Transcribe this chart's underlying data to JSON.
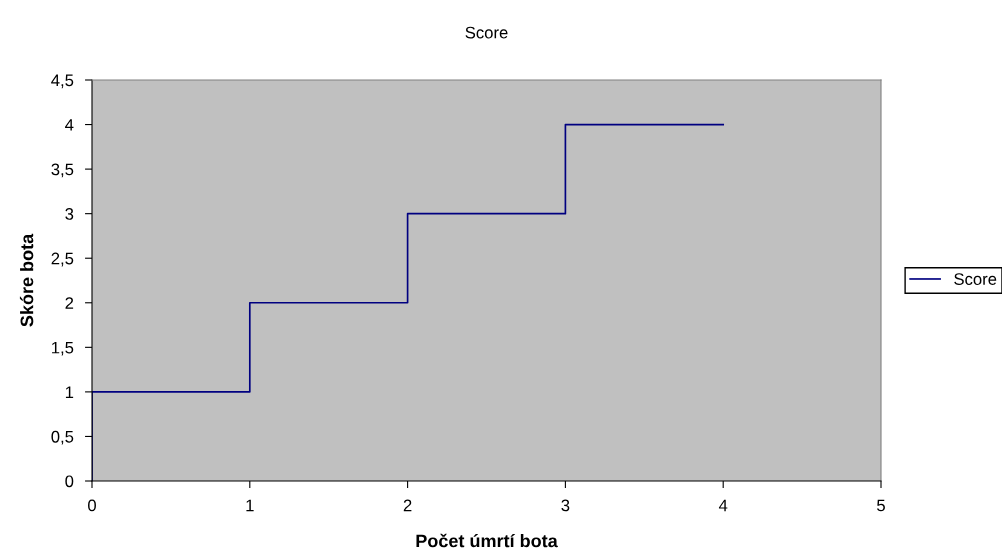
{
  "chart_data": {
    "type": "step",
    "title": "Score",
    "xlabel": "Počet úmrtí bota",
    "ylabel": "Skóre bota",
    "x": [
      0,
      0,
      1,
      2,
      3,
      4
    ],
    "series": [
      {
        "name": "Score",
        "color": "#000080",
        "values": [
          0,
          1,
          2,
          3,
          4,
          4
        ]
      }
    ],
    "xlim": [
      0,
      5
    ],
    "xticks": [
      0,
      1,
      2,
      3,
      4,
      5
    ],
    "ylim": [
      0,
      4.5
    ],
    "yticks": [
      0,
      {
        "value": 0.5,
        "label": "0,5"
      },
      1,
      {
        "value": 1.5,
        "label": "1,5"
      },
      2,
      {
        "value": 2.5,
        "label": "2,5"
      },
      3,
      {
        "value": 3.5,
        "label": "3,5"
      },
      4,
      {
        "value": 4.5,
        "label": "4,5"
      }
    ],
    "grid": false,
    "legend": "right"
  }
}
